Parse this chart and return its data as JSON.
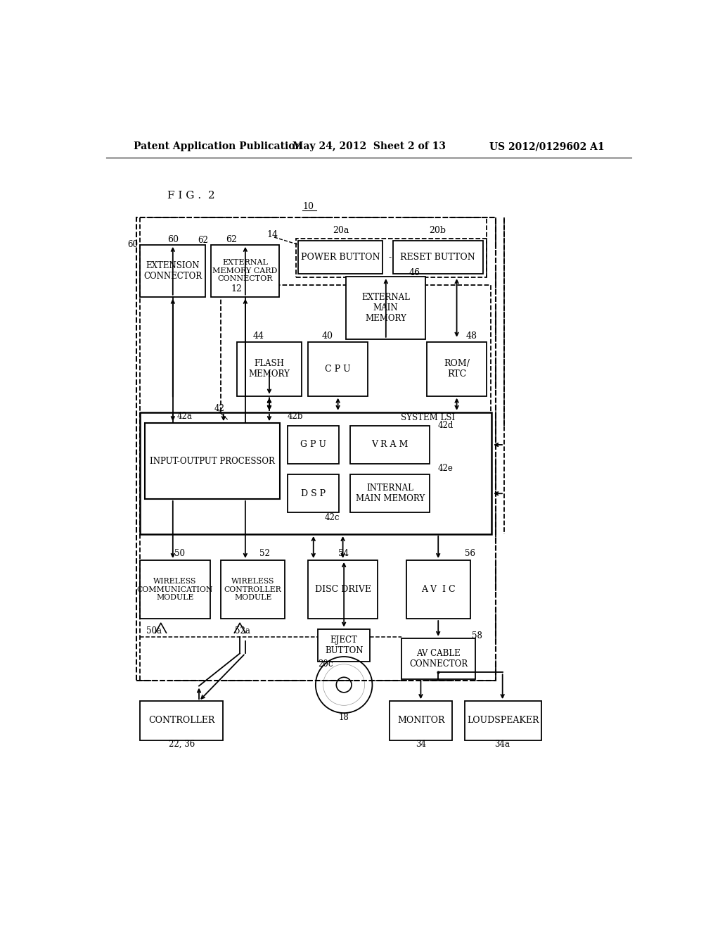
{
  "header_left": "Patent Application Publication",
  "header_mid": "May 24, 2012  Sheet 2 of 13",
  "header_right": "US 2012/0129602 A1",
  "fig_label": "F I G .  2",
  "bg_color": "#ffffff"
}
